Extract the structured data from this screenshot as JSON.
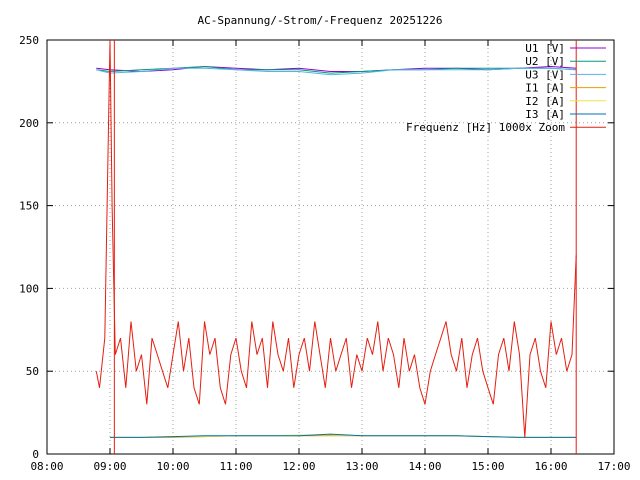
{
  "chart_data": {
    "type": "line",
    "title": "AC-Spannung/-Strom/-Frequenz 20251226",
    "xlabel": "",
    "ylabel": "",
    "grid": true,
    "legend_position": "top-right",
    "xlim": [
      "08:00",
      "17:00"
    ],
    "ylim": [
      0,
      250
    ],
    "x_ticks": [
      "08:00",
      "09:00",
      "10:00",
      "11:00",
      "12:00",
      "13:00",
      "14:00",
      "15:00",
      "16:00",
      "17:00"
    ],
    "y_ticks": [
      0,
      50,
      100,
      150,
      200,
      250
    ],
    "x_range_active": [
      "08:47",
      "16:24"
    ],
    "series": [
      {
        "name": "U1 [V]",
        "color": "#9400d3",
        "x": [
          "08:47",
          "09:00",
          "09:30",
          "10:00",
          "10:30",
          "11:00",
          "11:30",
          "12:00",
          "12:30",
          "13:00",
          "13:30",
          "14:00",
          "14:30",
          "15:00",
          "15:30",
          "16:00",
          "16:24"
        ],
        "y": [
          233,
          232,
          231,
          232,
          234,
          233,
          232,
          233,
          231,
          231,
          232,
          233,
          233,
          232,
          233,
          234,
          233
        ]
      },
      {
        "name": "U2 [V]",
        "color": "#009e73",
        "x": [
          "08:47",
          "09:00",
          "09:30",
          "10:00",
          "10:30",
          "11:00",
          "11:30",
          "12:00",
          "12:30",
          "13:00",
          "13:30",
          "14:00",
          "14:30",
          "15:00",
          "15:30",
          "16:00",
          "16:24"
        ],
        "y": [
          232,
          231,
          232,
          233,
          234,
          232,
          232,
          232,
          230,
          231,
          232,
          232,
          233,
          233,
          233,
          233,
          232
        ]
      },
      {
        "name": "U3 [V]",
        "color": "#56b4e9",
        "x": [
          "08:47",
          "09:00",
          "09:30",
          "10:00",
          "10:30",
          "11:00",
          "11:30",
          "12:00",
          "12:30",
          "13:00",
          "13:30",
          "14:00",
          "14:30",
          "15:00",
          "15:30",
          "16:00",
          "16:24"
        ],
        "y": [
          232,
          230,
          231,
          233,
          233,
          232,
          231,
          231,
          229,
          230,
          232,
          232,
          232,
          232,
          233,
          233,
          232
        ]
      },
      {
        "name": "I1 [A]",
        "color": "#e69f00",
        "x": [
          "09:00",
          "09:30",
          "10:00",
          "10:30",
          "11:00",
          "11:30",
          "12:00",
          "12:30",
          "13:00",
          "13:30",
          "14:00",
          "14:30",
          "15:00",
          "15:30",
          "16:00",
          "16:24"
        ],
        "y": [
          10,
          10,
          10,
          10.5,
          11,
          11,
          11,
          11,
          11,
          11,
          11,
          11,
          10.5,
          10,
          10,
          10
        ]
      },
      {
        "name": "I2 [A]",
        "color": "#f0e442",
        "x": [
          "09:00",
          "09:30",
          "10:00",
          "10:30",
          "11:00",
          "11:30",
          "12:00",
          "12:30",
          "13:00",
          "13:30",
          "14:00",
          "14:30",
          "15:00",
          "15:30",
          "16:00",
          "16:24"
        ],
        "y": [
          10,
          10,
          10.5,
          10.5,
          11,
          11,
          11.5,
          11.5,
          11,
          11,
          11,
          11,
          10.5,
          10,
          10,
          10
        ]
      },
      {
        "name": "I3 [A]",
        "color": "#0072b2",
        "x": [
          "09:00",
          "09:30",
          "10:00",
          "10:30",
          "11:00",
          "11:30",
          "12:00",
          "12:30",
          "13:00",
          "13:30",
          "14:00",
          "14:30",
          "15:00",
          "15:30",
          "16:00",
          "16:24"
        ],
        "y": [
          10,
          10,
          10.5,
          11,
          11,
          11,
          11,
          12,
          11,
          11,
          11,
          11,
          10.5,
          10,
          10,
          10
        ]
      },
      {
        "name": "Frequenz [Hz] 1000x Zoom",
        "color": "#e51e10",
        "x": [
          "08:47",
          "08:50",
          "08:55",
          "09:00",
          "09:02",
          "09:05",
          "09:10",
          "09:15",
          "09:20",
          "09:25",
          "09:30",
          "09:35",
          "09:40",
          "09:45",
          "09:50",
          "09:55",
          "10:00",
          "10:05",
          "10:10",
          "10:15",
          "10:20",
          "10:25",
          "10:30",
          "10:35",
          "10:40",
          "10:45",
          "10:50",
          "10:55",
          "11:00",
          "11:05",
          "11:10",
          "11:15",
          "11:20",
          "11:25",
          "11:30",
          "11:35",
          "11:40",
          "11:45",
          "11:50",
          "11:55",
          "12:00",
          "12:05",
          "12:10",
          "12:15",
          "12:20",
          "12:25",
          "12:30",
          "12:35",
          "12:40",
          "12:45",
          "12:50",
          "12:55",
          "13:00",
          "13:05",
          "13:10",
          "13:15",
          "13:20",
          "13:25",
          "13:30",
          "13:35",
          "13:40",
          "13:45",
          "13:50",
          "13:55",
          "14:00",
          "14:05",
          "14:10",
          "14:15",
          "14:20",
          "14:25",
          "14:30",
          "14:35",
          "14:40",
          "14:45",
          "14:50",
          "14:55",
          "15:00",
          "15:05",
          "15:10",
          "15:15",
          "15:20",
          "15:25",
          "15:30",
          "15:35",
          "15:40",
          "15:45",
          "15:50",
          "15:55",
          "16:00",
          "16:05",
          "16:10",
          "16:15",
          "16:20",
          "16:24"
        ],
        "y": [
          50,
          40,
          70,
          250,
          150,
          60,
          70,
          40,
          80,
          50,
          60,
          30,
          70,
          60,
          50,
          40,
          60,
          80,
          50,
          70,
          40,
          30,
          80,
          60,
          70,
          40,
          30,
          60,
          70,
          50,
          40,
          80,
          60,
          70,
          40,
          80,
          60,
          50,
          70,
          40,
          60,
          70,
          50,
          80,
          60,
          40,
          70,
          50,
          60,
          70,
          40,
          60,
          50,
          70,
          60,
          80,
          50,
          70,
          60,
          40,
          70,
          50,
          60,
          40,
          30,
          50,
          60,
          70,
          80,
          60,
          50,
          70,
          40,
          60,
          70,
          50,
          40,
          30,
          60,
          70,
          50,
          80,
          60,
          10,
          60,
          70,
          50,
          40,
          80,
          60,
          70,
          50,
          60,
          120
        ]
      }
    ]
  }
}
